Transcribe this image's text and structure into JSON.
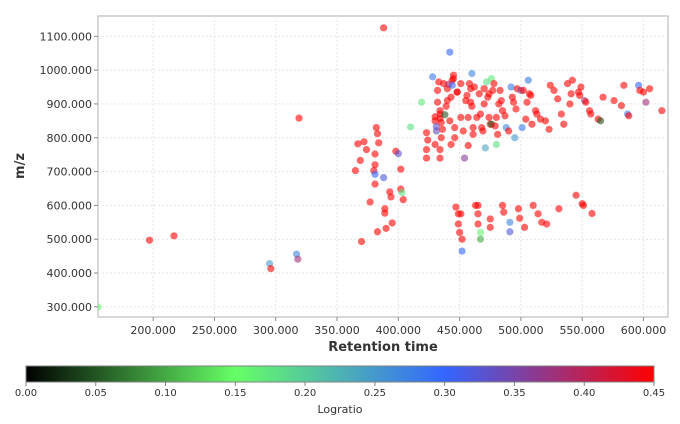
{
  "chart_data": {
    "type": "scatter",
    "xlabel": "Retention time",
    "ylabel": "m/z",
    "xlim": [
      155,
      620
    ],
    "ylim": [
      270,
      1160
    ],
    "grid": true,
    "x_ticks": [
      200,
      250,
      300,
      350,
      400,
      450,
      500,
      550,
      600
    ],
    "x_tick_labels": [
      "200.000",
      "250.000",
      "300.000",
      "350.000",
      "400.000",
      "450.000",
      "500.000",
      "550.000",
      "600.000"
    ],
    "y_ticks": [
      300,
      400,
      500,
      600,
      700,
      800,
      900,
      1000,
      1100
    ],
    "y_tick_labels": [
      "300.000",
      "400.000",
      "500.000",
      "600.000",
      "700.000",
      "800.000",
      "900.000",
      "1000.000",
      "1100.000"
    ],
    "color_scale": {
      "title": "Logratio",
      "min": 0,
      "max": 0.45,
      "ticks": [
        0,
        0.05,
        0.1,
        0.15,
        0.2,
        0.25,
        0.3,
        0.35,
        0.4,
        0.45
      ],
      "tick_labels": [
        "0.00",
        "0.05",
        "0.10",
        "0.15",
        "0.20",
        "0.25",
        "0.30",
        "0.35",
        "0.40",
        "0.45"
      ],
      "stops": [
        "#000000",
        "#66ff66",
        "#3366ff",
        "#ff0000"
      ]
    },
    "points": [
      [
        155,
        300,
        0.16
      ],
      [
        197,
        497,
        0.45
      ],
      [
        217,
        510,
        0.45
      ],
      [
        295,
        428,
        0.25
      ],
      [
        296,
        413,
        0.45
      ],
      [
        317,
        456,
        0.27
      ],
      [
        318,
        441,
        0.38
      ],
      [
        319,
        858,
        0.45
      ],
      [
        365,
        703,
        0.45
      ],
      [
        367,
        782,
        0.45
      ],
      [
        369,
        733,
        0.45
      ],
      [
        370,
        493,
        0.45
      ],
      [
        372,
        788,
        0.45
      ],
      [
        374,
        765,
        0.45
      ],
      [
        377,
        610,
        0.45
      ],
      [
        380,
        703,
        0.45
      ],
      [
        381,
        692,
        0.3
      ],
      [
        381,
        720,
        0.45
      ],
      [
        381,
        663,
        0.45
      ],
      [
        381,
        752,
        0.45
      ],
      [
        382,
        830,
        0.45
      ],
      [
        383,
        812,
        0.45
      ],
      [
        383,
        522,
        0.45
      ],
      [
        384,
        785,
        0.45
      ],
      [
        388,
        682,
        0.32
      ],
      [
        388,
        1125,
        0.45
      ],
      [
        389,
        590,
        0.45
      ],
      [
        389,
        577,
        0.45
      ],
      [
        390,
        532,
        0.45
      ],
      [
        393,
        640,
        0.45
      ],
      [
        394,
        625,
        0.45
      ],
      [
        395,
        548,
        0.45
      ],
      [
        398,
        760,
        0.45
      ],
      [
        400,
        753,
        0.33
      ],
      [
        402,
        707,
        0.45
      ],
      [
        402,
        648,
        0.45
      ],
      [
        403,
        638,
        0.18
      ],
      [
        404,
        617,
        0.45
      ],
      [
        410,
        832,
        0.18
      ],
      [
        419,
        905,
        0.17
      ],
      [
        423,
        740,
        0.45
      ],
      [
        423,
        765,
        0.45
      ],
      [
        423,
        815,
        0.45
      ],
      [
        424,
        793,
        0.45
      ],
      [
        428,
        980,
        0.28
      ],
      [
        430,
        862,
        0.45
      ],
      [
        430,
        850,
        0.45
      ],
      [
        430,
        780,
        0.45
      ],
      [
        431,
        820,
        0.34
      ],
      [
        431,
        833,
        0.33
      ],
      [
        432,
        905,
        0.45
      ],
      [
        432,
        940,
        0.45
      ],
      [
        433,
        965,
        0.45
      ],
      [
        434,
        740,
        0.45
      ],
      [
        434,
        765,
        0.45
      ],
      [
        434,
        880,
        0.45
      ],
      [
        434,
        857,
        0.45
      ],
      [
        434,
        870,
        0.45
      ],
      [
        435,
        845,
        0.45
      ],
      [
        435,
        800,
        0.45
      ],
      [
        436,
        825,
        0.45
      ],
      [
        437,
        960,
        0.45
      ],
      [
        438,
        868,
        0.05
      ],
      [
        439,
        893,
        0.45
      ],
      [
        440,
        945,
        0.45
      ],
      [
        440,
        910,
        0.45
      ],
      [
        441,
        958,
        0.4
      ],
      [
        442,
        850,
        0.45
      ],
      [
        442,
        1053,
        0.3
      ],
      [
        443,
        780,
        0.45
      ],
      [
        443,
        920,
        0.45
      ],
      [
        444,
        970,
        0.45
      ],
      [
        444,
        955,
        0.3
      ],
      [
        445,
        975,
        0.45
      ],
      [
        445,
        985,
        0.45
      ],
      [
        446,
        830,
        0.45
      ],
      [
        446,
        800,
        0.45
      ],
      [
        447,
        595,
        0.45
      ],
      [
        448,
        935,
        0.45
      ],
      [
        448,
        935,
        0.45
      ],
      [
        449,
        545,
        0.45
      ],
      [
        449,
        575,
        0.45
      ],
      [
        450,
        520,
        0.45
      ],
      [
        451,
        960,
        0.45
      ],
      [
        451,
        860,
        0.45
      ],
      [
        451,
        575,
        0.45
      ],
      [
        452,
        500,
        0.45
      ],
      [
        452,
        465,
        0.3
      ],
      [
        453,
        820,
        0.45
      ],
      [
        454,
        740,
        0.36
      ],
      [
        455,
        910,
        0.45
      ],
      [
        456,
        925,
        0.45
      ],
      [
        457,
        777,
        0.45
      ],
      [
        457,
        860,
        0.45
      ],
      [
        458,
        960,
        0.45
      ],
      [
        459,
        905,
        0.45
      ],
      [
        459,
        945,
        0.45
      ],
      [
        460,
        893,
        0.45
      ],
      [
        460,
        990,
        0.27
      ],
      [
        461,
        810,
        0.45
      ],
      [
        461,
        830,
        0.45
      ],
      [
        462,
        950,
        0.45
      ],
      [
        463,
        600,
        0.45
      ],
      [
        464,
        860,
        0.45
      ],
      [
        465,
        600,
        0.45
      ],
      [
        465,
        575,
        0.45
      ],
      [
        465,
        545,
        0.45
      ],
      [
        466,
        930,
        0.45
      ],
      [
        467,
        870,
        0.45
      ],
      [
        467,
        520,
        0.16
      ],
      [
        467,
        500,
        0.1
      ],
      [
        468,
        830,
        0.45
      ],
      [
        469,
        820,
        0.45
      ],
      [
        470,
        945,
        0.45
      ],
      [
        470,
        900,
        0.45
      ],
      [
        471,
        770,
        0.24
      ],
      [
        472,
        965,
        0.18
      ],
      [
        473,
        920,
        0.45
      ],
      [
        474,
        930,
        0.45
      ],
      [
        474,
        860,
        0.45
      ],
      [
        475,
        840,
        0.45
      ],
      [
        475,
        535,
        0.45
      ],
      [
        475,
        560,
        0.45
      ],
      [
        476,
        975,
        0.17
      ],
      [
        476,
        840,
        0.05
      ],
      [
        477,
        940,
        0.45
      ],
      [
        478,
        960,
        0.45
      ],
      [
        479,
        835,
        0.45
      ],
      [
        480,
        780,
        0.18
      ],
      [
        480,
        860,
        0.45
      ],
      [
        481,
        810,
        0.45
      ],
      [
        482,
        900,
        0.45
      ],
      [
        483,
        940,
        0.45
      ],
      [
        484,
        910,
        0.45
      ],
      [
        485,
        880,
        0.45
      ],
      [
        485,
        600,
        0.45
      ],
      [
        486,
        580,
        0.45
      ],
      [
        487,
        865,
        0.45
      ],
      [
        488,
        830,
        0.27
      ],
      [
        490,
        820,
        0.45
      ],
      [
        491,
        550,
        0.27
      ],
      [
        491,
        522,
        0.32
      ],
      [
        492,
        950,
        0.28
      ],
      [
        493,
        920,
        0.45
      ],
      [
        494,
        905,
        0.45
      ],
      [
        495,
        800,
        0.25
      ],
      [
        496,
        885,
        0.45
      ],
      [
        497,
        945,
        0.45
      ],
      [
        498,
        590,
        0.45
      ],
      [
        499,
        562,
        0.45
      ],
      [
        500,
        940,
        0.35
      ],
      [
        501,
        830,
        0.28
      ],
      [
        502,
        940,
        0.45
      ],
      [
        503,
        535,
        0.45
      ],
      [
        504,
        855,
        0.45
      ],
      [
        505,
        905,
        0.45
      ],
      [
        506,
        970,
        0.28
      ],
      [
        507,
        930,
        0.45
      ],
      [
        508,
        925,
        0.45
      ],
      [
        509,
        840,
        0.45
      ],
      [
        510,
        600,
        0.45
      ],
      [
        512,
        880,
        0.45
      ],
      [
        513,
        870,
        0.45
      ],
      [
        514,
        575,
        0.45
      ],
      [
        516,
        855,
        0.45
      ],
      [
        517,
        550,
        0.45
      ],
      [
        520,
        850,
        0.45
      ],
      [
        521,
        545,
        0.45
      ],
      [
        523,
        825,
        0.45
      ],
      [
        524,
        955,
        0.45
      ],
      [
        527,
        940,
        0.45
      ],
      [
        530,
        915,
        0.45
      ],
      [
        531,
        590,
        0.45
      ],
      [
        533,
        870,
        0.45
      ],
      [
        535,
        840,
        0.45
      ],
      [
        538,
        960,
        0.45
      ],
      [
        540,
        900,
        0.45
      ],
      [
        541,
        930,
        0.45
      ],
      [
        542,
        970,
        0.45
      ],
      [
        545,
        630,
        0.45
      ],
      [
        547,
        935,
        0.45
      ],
      [
        548,
        925,
        0.45
      ],
      [
        549,
        950,
        0.45
      ],
      [
        550,
        605,
        0.45
      ],
      [
        551,
        600,
        0.45
      ],
      [
        552,
        910,
        0.38
      ],
      [
        553,
        905,
        0.45
      ],
      [
        556,
        880,
        0.45
      ],
      [
        557,
        870,
        0.45
      ],
      [
        558,
        576,
        0.45
      ],
      [
        563,
        855,
        0.45
      ],
      [
        565,
        850,
        0.05
      ],
      [
        567,
        920,
        0.45
      ],
      [
        576,
        910,
        0.45
      ],
      [
        582,
        895,
        0.45
      ],
      [
        584,
        955,
        0.45
      ],
      [
        587,
        870,
        0.28
      ],
      [
        588,
        865,
        0.45
      ],
      [
        596,
        955,
        0.3
      ],
      [
        597,
        940,
        0.45
      ],
      [
        600,
        935,
        0.45
      ],
      [
        602,
        905,
        0.38
      ],
      [
        605,
        945,
        0.45
      ],
      [
        615,
        880,
        0.45
      ]
    ]
  }
}
